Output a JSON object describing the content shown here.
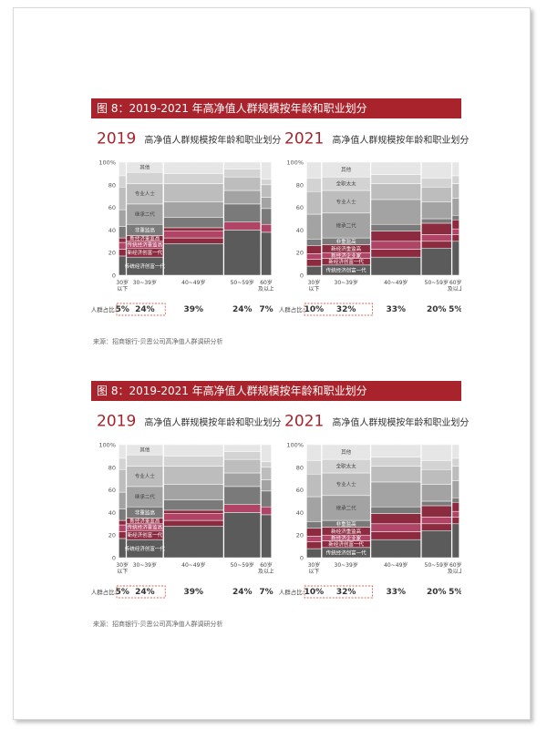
{
  "panels": [
    {
      "banner": "图 8：2019-2021 年高净值人群规模按年龄和职业划分",
      "source": "来源：招商银行-贝恩公司高净值人群调研分析"
    },
    {
      "banner": "图 8：2019-2021 年高净值人群规模按年龄和职业划分",
      "source": "来源：招商银行-贝恩公司高净值人群调研分析"
    }
  ],
  "colors": {
    "banner": "#a8232b",
    "chuantong": "#5b5b5b",
    "xindaichuang": "#8c2b3f",
    "xindaizhongguan": "#b04466",
    "feiqiyezhu": "#7a7a7a",
    "jicheng": "#a3a3a3",
    "zhuanye": "#bdbdbd",
    "quanzhi": "#d3d3d3",
    "qita": "#e6e6e6"
  },
  "chart_data": [
    {
      "type": "bar",
      "variant": "marimekko-100-stacked",
      "year_label": "2019",
      "title": "高净值人群规模按年龄和职业划分",
      "ylim": [
        0,
        100
      ],
      "yticks": [
        "0",
        "20",
        "40",
        "60",
        "80",
        "100%"
      ],
      "share_label": "人群占比:",
      "categories": [
        "30岁\n以下",
        "30~39岁",
        "40~49岁",
        "50~59岁",
        "60岁\n及以上"
      ],
      "widths": [
        5,
        24,
        39,
        24,
        7
      ],
      "width_labels": [
        "5%",
        "24%",
        "39%",
        "24%",
        "7%"
      ],
      "series": [
        {
          "name": "传统经济创富一代",
          "color": "chuantong",
          "values": [
            17,
            16,
            28,
            40,
            38
          ]
        },
        {
          "name": "新经济创富一代",
          "color": "xindaichuang",
          "values": [
            6,
            8,
            5,
            0,
            0
          ]
        },
        {
          "name": "传统经济重监高",
          "color": "xindaizhongguan",
          "values": [
            6,
            6,
            6,
            7,
            7
          ]
        },
        {
          "name": "新经济重监高",
          "color": "xindaichuang",
          "values": [
            4,
            5,
            3,
            0,
            0
          ]
        },
        {
          "name": "非重监高",
          "color": "feiqiyezhu",
          "values": [
            10,
            10,
            9,
            16,
            14
          ]
        },
        {
          "name": "继承二代",
          "color": "jicheng",
          "values": [
            15,
            18,
            14,
            12,
            10
          ]
        },
        {
          "name": "专业人士",
          "color": "zhuanye",
          "values": [
            20,
            18,
            16,
            12,
            11
          ]
        },
        {
          "name": "全职太太",
          "color": "quanzhi",
          "values": [
            10,
            10,
            9,
            7,
            5
          ]
        },
        {
          "name": "其他",
          "color": "qita",
          "values": [
            12,
            9,
            10,
            6,
            15
          ]
        }
      ],
      "inline_labels": [
        "其他",
        "专业人士",
        "继承二代",
        "非重监高",
        "新经济重监高",
        "传统经济重监高",
        "新经济创富一代",
        "传统经济创富一代"
      ]
    },
    {
      "type": "bar",
      "variant": "marimekko-100-stacked",
      "year_label": "2021",
      "title": "高净值人群规模按年龄和职业划分",
      "ylim": [
        0,
        100
      ],
      "yticks": [
        "0",
        "20",
        "40",
        "60",
        "80",
        "100%"
      ],
      "share_label": "人群占比:",
      "categories": [
        "30岁\n以下",
        "30~39岁",
        "40~49岁",
        "50~59岁",
        "60岁\n及以上"
      ],
      "widths": [
        10,
        32,
        33,
        20,
        5
      ],
      "width_labels": [
        "10%",
        "32%",
        "33%",
        "20%",
        "5%"
      ],
      "series": [
        {
          "name": "传统经济创富一代",
          "color": "chuantong",
          "values": [
            8,
            9,
            16,
            24,
            30
          ]
        },
        {
          "name": "新经济创富一代",
          "color": "xindaichuang",
          "values": [
            6,
            6,
            7,
            6,
            6
          ]
        },
        {
          "name": "新经济企业家",
          "color": "xindaizhongguan",
          "values": [
            5,
            5,
            7,
            6,
            5
          ]
        },
        {
          "name": "新经济重监高",
          "color": "xindaichuang",
          "values": [
            7,
            7,
            9,
            10,
            8
          ]
        },
        {
          "name": "非重监高",
          "color": "feiqiyezhu",
          "values": [
            6,
            6,
            6,
            4,
            4
          ]
        },
        {
          "name": "继承二代",
          "color": "jicheng",
          "values": [
            22,
            22,
            22,
            15,
            15
          ]
        },
        {
          "name": "专业人士",
          "color": "zhuanye",
          "values": [
            20,
            20,
            14,
            13,
            13
          ]
        },
        {
          "name": "全职太太",
          "color": "quanzhi",
          "values": [
            12,
            12,
            8,
            8,
            7
          ]
        },
        {
          "name": "其他",
          "color": "qita",
          "values": [
            14,
            13,
            11,
            14,
            12
          ]
        }
      ],
      "inline_labels": [
        "其他",
        "全职太太",
        "专业人士",
        "继承二代",
        "非重监高",
        "新经济重监高",
        "新经济企业家",
        "新经济创富一代",
        "传统经济创富一代"
      ]
    }
  ]
}
